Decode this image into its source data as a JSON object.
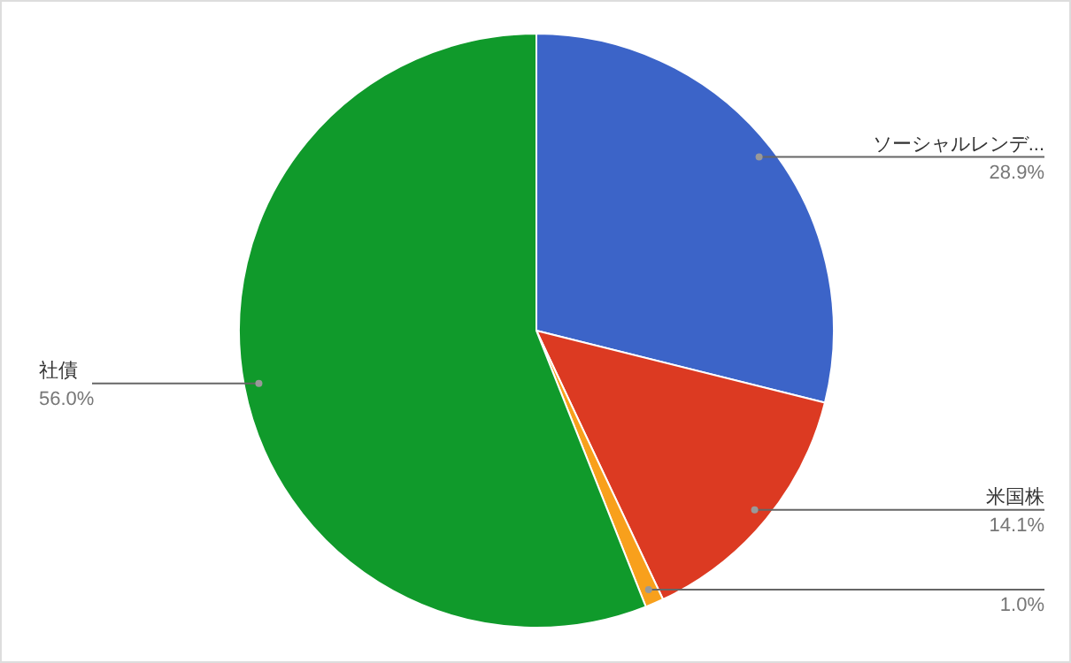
{
  "chart_data": {
    "type": "pie",
    "categories": [
      "ソーシャルレンデ...",
      "米国株",
      null,
      "社債"
    ],
    "values": [
      28.9,
      14.1,
      1.0,
      56.0
    ],
    "value_labels": [
      "28.9%",
      "14.1%",
      "1.0%",
      "56.0%"
    ],
    "colors": [
      "#3c64c8",
      "#dc3a22",
      "#f8a01c",
      "#109a2b"
    ]
  }
}
